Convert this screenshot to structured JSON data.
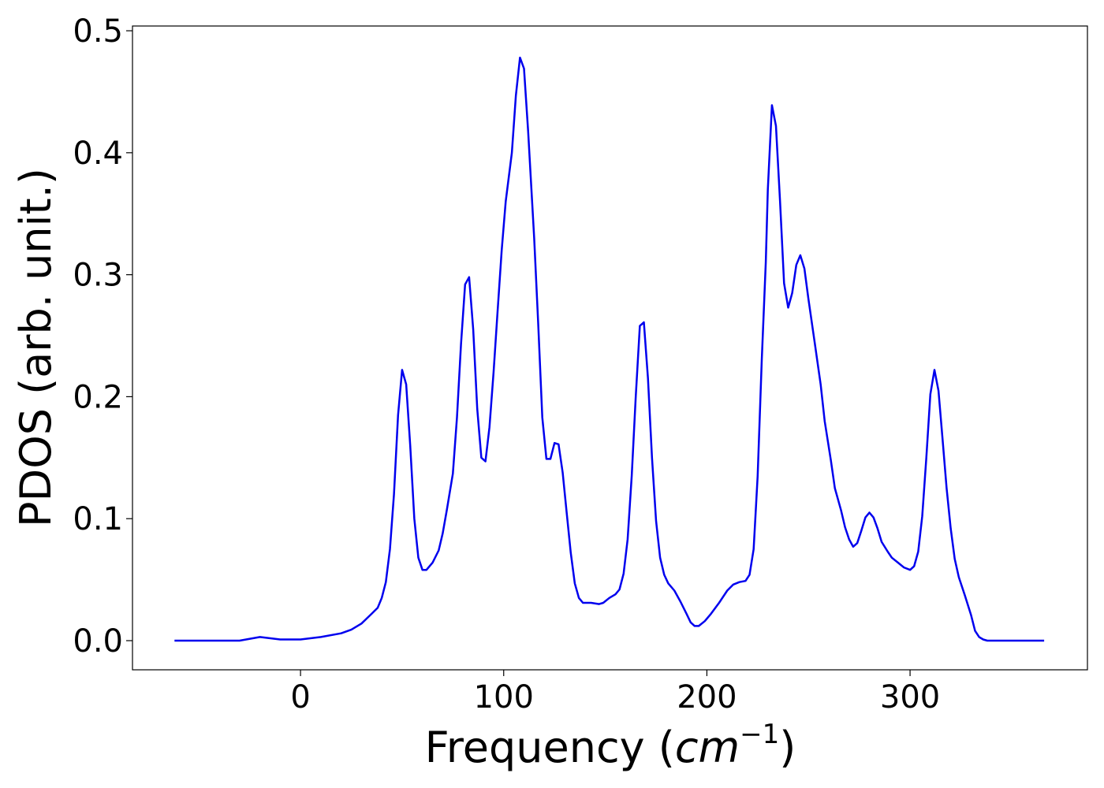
{
  "chart_data": {
    "type": "line",
    "xlabel": {
      "text": "Frequency (",
      "unit": "cm",
      "exponent": "−1",
      "close": ")"
    },
    "ylabel": "PDOS (arb. unit.)",
    "xlim": [
      -82.7,
      387.3
    ],
    "ylim": [
      -0.0239,
      0.5039
    ],
    "xticks": [
      0,
      100,
      200,
      300
    ],
    "yticks": [
      {
        "value": 0,
        "label": "0.0"
      },
      {
        "value": 0.1,
        "label": "0.1"
      },
      {
        "value": 0.2,
        "label": "0.2"
      },
      {
        "value": 0.3,
        "label": "0.3"
      },
      {
        "value": 0.4,
        "label": "0.4"
      },
      {
        "value": 0.5,
        "label": "0.5"
      }
    ],
    "x": [
      -62,
      -30,
      -20,
      -10,
      0,
      10,
      20,
      25,
      30,
      35,
      38,
      40,
      42,
      44,
      46,
      48,
      50,
      52,
      54,
      56,
      58,
      60,
      62,
      65,
      68,
      70,
      72,
      75,
      77,
      79,
      81,
      83,
      85,
      87,
      89,
      91,
      93,
      95,
      97,
      99,
      101,
      104,
      106,
      108,
      110,
      112,
      115,
      117,
      119,
      121,
      123,
      125,
      127,
      129,
      131,
      133,
      135,
      137,
      139,
      143,
      147,
      149,
      152,
      155,
      157,
      159,
      161,
      163,
      165,
      167,
      169,
      171,
      173,
      175,
      177,
      179,
      181,
      184,
      187,
      190,
      192,
      194,
      196,
      199,
      202,
      206,
      210,
      213,
      216,
      219,
      221,
      223,
      225,
      227,
      229,
      230,
      232,
      234,
      236,
      238,
      240,
      242,
      244,
      246,
      248,
      250,
      253,
      256,
      258,
      261,
      263,
      266,
      268,
      270,
      272,
      274,
      276,
      278,
      280,
      282,
      284,
      286,
      289,
      291,
      294,
      297,
      300,
      302,
      304,
      306,
      308,
      310,
      312,
      314,
      316,
      318,
      320,
      322,
      324,
      327,
      330,
      332,
      334,
      336,
      338,
      366
    ],
    "series": [
      {
        "color": "#0000ee",
        "values": [
          0,
          0,
          0.003,
          0.001,
          0.001,
          0.003,
          0.006,
          0.009,
          0.014,
          0.022,
          0.027,
          0.035,
          0.048,
          0.075,
          0.12,
          0.185,
          0.222,
          0.21,
          0.16,
          0.1,
          0.068,
          0.058,
          0.058,
          0.064,
          0.074,
          0.088,
          0.107,
          0.137,
          0.183,
          0.243,
          0.292,
          0.298,
          0.255,
          0.19,
          0.15,
          0.147,
          0.175,
          0.22,
          0.27,
          0.32,
          0.36,
          0.4,
          0.447,
          0.478,
          0.469,
          0.418,
          0.33,
          0.26,
          0.183,
          0.149,
          0.149,
          0.162,
          0.161,
          0.138,
          0.105,
          0.072,
          0.047,
          0.035,
          0.031,
          0.031,
          0.03,
          0.031,
          0.035,
          0.038,
          0.042,
          0.055,
          0.083,
          0.135,
          0.2,
          0.258,
          0.261,
          0.215,
          0.15,
          0.098,
          0.068,
          0.054,
          0.047,
          0.041,
          0.032,
          0.022,
          0.015,
          0.012,
          0.012,
          0.016,
          0.022,
          0.031,
          0.041,
          0.046,
          0.048,
          0.049,
          0.054,
          0.075,
          0.135,
          0.23,
          0.31,
          0.37,
          0.439,
          0.422,
          0.36,
          0.293,
          0.273,
          0.285,
          0.308,
          0.316,
          0.305,
          0.28,
          0.245,
          0.21,
          0.18,
          0.148,
          0.125,
          0.107,
          0.093,
          0.083,
          0.077,
          0.08,
          0.09,
          0.101,
          0.105,
          0.101,
          0.092,
          0.081,
          0.073,
          0.068,
          0.064,
          0.06,
          0.058,
          0.061,
          0.073,
          0.102,
          0.15,
          0.202,
          0.222,
          0.205,
          0.165,
          0.125,
          0.092,
          0.067,
          0.052,
          0.037,
          0.021,
          0.008,
          0.003,
          0.001,
          0,
          0
        ]
      }
    ]
  }
}
